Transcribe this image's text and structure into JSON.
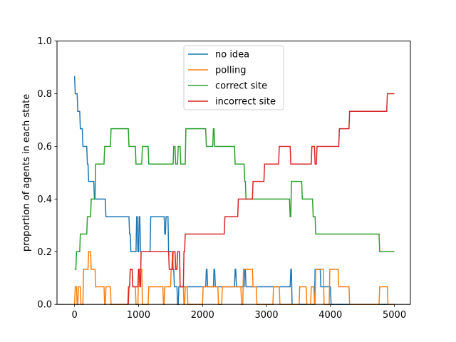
{
  "chart_data": {
    "type": "line",
    "title": "",
    "xlabel": "",
    "ylabel": "proportion of agents in each state",
    "xlim": [
      -275,
      5250
    ],
    "ylim": [
      0.0,
      1.0
    ],
    "x_ticks": [
      0,
      1000,
      2000,
      3000,
      4000,
      5000
    ],
    "y_ticks": [
      0.0,
      0.2,
      0.4,
      0.6,
      0.8,
      1.0
    ],
    "x_tick_labels": [
      "0",
      "1000",
      "2000",
      "3000",
      "4000",
      "5000"
    ],
    "y_tick_labels": [
      "0.0",
      "0.2",
      "0.4",
      "0.6",
      "0.8",
      "1.0"
    ],
    "legend_position": "upper-center",
    "grid": false,
    "step": true,
    "series": [
      {
        "name": "no idea",
        "color": "#1f77b4",
        "points": [
          [
            0,
            0.867
          ],
          [
            10,
            0.8
          ],
          [
            40,
            0.8
          ],
          [
            50,
            0.733
          ],
          [
            80,
            0.733
          ],
          [
            90,
            0.667
          ],
          [
            120,
            0.667
          ],
          [
            130,
            0.6
          ],
          [
            190,
            0.6
          ],
          [
            200,
            0.533
          ],
          [
            210,
            0.533
          ],
          [
            220,
            0.467
          ],
          [
            300,
            0.467
          ],
          [
            310,
            0.4
          ],
          [
            480,
            0.4
          ],
          [
            490,
            0.333
          ],
          [
            850,
            0.333
          ],
          [
            860,
            0.267
          ],
          [
            870,
            0.267
          ],
          [
            880,
            0.2
          ],
          [
            960,
            0.2
          ],
          [
            970,
            0.333
          ],
          [
            980,
            0.333
          ],
          [
            990,
            0.2
          ],
          [
            1000,
            0.2
          ],
          [
            1010,
            0.333
          ],
          [
            1020,
            0.333
          ],
          [
            1030,
            0.2
          ],
          [
            1180,
            0.2
          ],
          [
            1190,
            0.333
          ],
          [
            1400,
            0.333
          ],
          [
            1410,
            0.267
          ],
          [
            1420,
            0.267
          ],
          [
            1430,
            0.333
          ],
          [
            1460,
            0.333
          ],
          [
            1470,
            0.2
          ],
          [
            1530,
            0.2
          ],
          [
            1540,
            0.133
          ],
          [
            1550,
            0.133
          ],
          [
            1560,
            0.067
          ],
          [
            1600,
            0.067
          ],
          [
            1610,
            0.0
          ],
          [
            1620,
            0.0
          ],
          [
            1630,
            0.067
          ],
          [
            2050,
            0.067
          ],
          [
            2060,
            0.133
          ],
          [
            2070,
            0.133
          ],
          [
            2080,
            0.067
          ],
          [
            2170,
            0.067
          ],
          [
            2180,
            0.133
          ],
          [
            2190,
            0.133
          ],
          [
            2200,
            0.067
          ],
          [
            2500,
            0.067
          ],
          [
            2510,
            0.133
          ],
          [
            2520,
            0.133
          ],
          [
            2530,
            0.067
          ],
          [
            2650,
            0.067
          ],
          [
            2660,
            0.133
          ],
          [
            2670,
            0.133
          ],
          [
            2680,
            0.067
          ],
          [
            3370,
            0.067
          ],
          [
            3380,
            0.133
          ],
          [
            3390,
            0.133
          ],
          [
            3400,
            0.0
          ],
          [
            3750,
            0.0
          ],
          [
            3760,
            0.133
          ],
          [
            3840,
            0.133
          ],
          [
            3850,
            0.067
          ],
          [
            4000,
            0.067
          ],
          [
            4010,
            0.0
          ],
          [
            5000,
            0.0
          ]
        ]
      },
      {
        "name": "polling",
        "color": "#ff7f0e",
        "points": [
          [
            0,
            0.0
          ],
          [
            10,
            0.067
          ],
          [
            30,
            0.067
          ],
          [
            40,
            0.0
          ],
          [
            50,
            0.0
          ],
          [
            60,
            0.067
          ],
          [
            90,
            0.067
          ],
          [
            100,
            0.0
          ],
          [
            130,
            0.0
          ],
          [
            140,
            0.133
          ],
          [
            210,
            0.133
          ],
          [
            220,
            0.2
          ],
          [
            250,
            0.2
          ],
          [
            260,
            0.133
          ],
          [
            320,
            0.133
          ],
          [
            330,
            0.067
          ],
          [
            460,
            0.067
          ],
          [
            470,
            0.0
          ],
          [
            480,
            0.0
          ],
          [
            490,
            0.067
          ],
          [
            560,
            0.067
          ],
          [
            570,
            0.0
          ],
          [
            830,
            0.0
          ],
          [
            840,
            0.067
          ],
          [
            860,
            0.067
          ],
          [
            870,
            0.133
          ],
          [
            900,
            0.133
          ],
          [
            910,
            0.067
          ],
          [
            950,
            0.067
          ],
          [
            960,
            0.0
          ],
          [
            990,
            0.0
          ],
          [
            1000,
            0.133
          ],
          [
            1050,
            0.133
          ],
          [
            1060,
            0.0
          ],
          [
            1150,
            0.0
          ],
          [
            1160,
            0.067
          ],
          [
            1380,
            0.067
          ],
          [
            1390,
            0.0
          ],
          [
            1400,
            0.0
          ],
          [
            1410,
            0.067
          ],
          [
            1500,
            0.067
          ],
          [
            1510,
            0.133
          ],
          [
            1520,
            0.133
          ],
          [
            1530,
            0.2
          ],
          [
            1570,
            0.2
          ],
          [
            1580,
            0.133
          ],
          [
            1600,
            0.133
          ],
          [
            1610,
            0.2
          ],
          [
            1640,
            0.2
          ],
          [
            1650,
            0.067
          ],
          [
            1700,
            0.067
          ],
          [
            1710,
            0.0
          ],
          [
            1720,
            0.0
          ],
          [
            1730,
            0.067
          ],
          [
            1760,
            0.067
          ],
          [
            1770,
            0.0
          ],
          [
            2000,
            0.0
          ],
          [
            2010,
            0.067
          ],
          [
            2240,
            0.067
          ],
          [
            2250,
            0.0
          ],
          [
            2300,
            0.0
          ],
          [
            2310,
            0.067
          ],
          [
            2600,
            0.067
          ],
          [
            2610,
            0.0
          ],
          [
            2630,
            0.0
          ],
          [
            2640,
            0.133
          ],
          [
            2780,
            0.133
          ],
          [
            2790,
            0.067
          ],
          [
            2840,
            0.067
          ],
          [
            2850,
            0.0
          ],
          [
            3100,
            0.0
          ],
          [
            3110,
            0.067
          ],
          [
            3200,
            0.067
          ],
          [
            3210,
            0.0
          ],
          [
            3510,
            0.0
          ],
          [
            3520,
            0.067
          ],
          [
            3620,
            0.067
          ],
          [
            3630,
            0.0
          ],
          [
            3690,
            0.0
          ],
          [
            3700,
            0.067
          ],
          [
            3740,
            0.067
          ],
          [
            3750,
            0.0
          ],
          [
            3760,
            0.0
          ],
          [
            3770,
            0.133
          ],
          [
            3890,
            0.133
          ],
          [
            3900,
            0.0
          ],
          [
            3980,
            0.0
          ],
          [
            3990,
            0.133
          ],
          [
            4120,
            0.133
          ],
          [
            4130,
            0.067
          ],
          [
            4290,
            0.067
          ],
          [
            4300,
            0.0
          ],
          [
            4760,
            0.0
          ],
          [
            4770,
            0.067
          ],
          [
            4890,
            0.067
          ],
          [
            4900,
            0.0
          ],
          [
            5000,
            0.0
          ]
        ]
      },
      {
        "name": "correct site",
        "color": "#2ca02c",
        "points": [
          [
            0,
            0.133
          ],
          [
            20,
            0.133
          ],
          [
            30,
            0.2
          ],
          [
            80,
            0.2
          ],
          [
            90,
            0.267
          ],
          [
            190,
            0.267
          ],
          [
            200,
            0.333
          ],
          [
            250,
            0.333
          ],
          [
            260,
            0.4
          ],
          [
            320,
            0.4
          ],
          [
            330,
            0.533
          ],
          [
            460,
            0.533
          ],
          [
            470,
            0.6
          ],
          [
            560,
            0.6
          ],
          [
            570,
            0.667
          ],
          [
            840,
            0.667
          ],
          [
            850,
            0.6
          ],
          [
            950,
            0.6
          ],
          [
            960,
            0.533
          ],
          [
            1050,
            0.533
          ],
          [
            1060,
            0.6
          ],
          [
            1150,
            0.6
          ],
          [
            1160,
            0.533
          ],
          [
            1540,
            0.533
          ],
          [
            1550,
            0.6
          ],
          [
            1570,
            0.6
          ],
          [
            1580,
            0.533
          ],
          [
            1610,
            0.533
          ],
          [
            1620,
            0.6
          ],
          [
            1650,
            0.6
          ],
          [
            1660,
            0.533
          ],
          [
            1730,
            0.533
          ],
          [
            1740,
            0.667
          ],
          [
            2050,
            0.667
          ],
          [
            2060,
            0.6
          ],
          [
            2160,
            0.6
          ],
          [
            2170,
            0.667
          ],
          [
            2180,
            0.667
          ],
          [
            2190,
            0.6
          ],
          [
            2500,
            0.6
          ],
          [
            2510,
            0.533
          ],
          [
            2650,
            0.533
          ],
          [
            2660,
            0.467
          ],
          [
            2670,
            0.467
          ],
          [
            2680,
            0.4
          ],
          [
            3360,
            0.4
          ],
          [
            3370,
            0.333
          ],
          [
            3380,
            0.333
          ],
          [
            3390,
            0.467
          ],
          [
            3550,
            0.467
          ],
          [
            3560,
            0.4
          ],
          [
            3720,
            0.4
          ],
          [
            3730,
            0.333
          ],
          [
            3760,
            0.333
          ],
          [
            3770,
            0.267
          ],
          [
            4760,
            0.267
          ],
          [
            4770,
            0.2
          ],
          [
            5000,
            0.2
          ]
        ]
      },
      {
        "name": "incorrect site",
        "color": "#d62728",
        "points": [
          [
            840,
            0.0
          ],
          [
            850,
            0.067
          ],
          [
            860,
            0.067
          ],
          [
            870,
            0.133
          ],
          [
            900,
            0.133
          ],
          [
            910,
            0.067
          ],
          [
            990,
            0.067
          ],
          [
            1000,
            0.133
          ],
          [
            1010,
            0.133
          ],
          [
            1020,
            0.067
          ],
          [
            1030,
            0.067
          ],
          [
            1040,
            0.2
          ],
          [
            1470,
            0.2
          ],
          [
            1480,
            0.133
          ],
          [
            1530,
            0.133
          ],
          [
            1540,
            0.2
          ],
          [
            1570,
            0.2
          ],
          [
            1580,
            0.133
          ],
          [
            1600,
            0.133
          ],
          [
            1610,
            0.2
          ],
          [
            1640,
            0.2
          ],
          [
            1650,
            0.067
          ],
          [
            1700,
            0.067
          ],
          [
            1710,
            0.2
          ],
          [
            1720,
            0.2
          ],
          [
            1730,
            0.267
          ],
          [
            2340,
            0.267
          ],
          [
            2350,
            0.333
          ],
          [
            2550,
            0.333
          ],
          [
            2560,
            0.4
          ],
          [
            2780,
            0.4
          ],
          [
            2790,
            0.467
          ],
          [
            2960,
            0.467
          ],
          [
            2970,
            0.533
          ],
          [
            3190,
            0.533
          ],
          [
            3200,
            0.6
          ],
          [
            3370,
            0.6
          ],
          [
            3380,
            0.533
          ],
          [
            3700,
            0.533
          ],
          [
            3710,
            0.6
          ],
          [
            3750,
            0.6
          ],
          [
            3760,
            0.533
          ],
          [
            3780,
            0.533
          ],
          [
            3790,
            0.6
          ],
          [
            4130,
            0.6
          ],
          [
            4140,
            0.667
          ],
          [
            4290,
            0.667
          ],
          [
            4300,
            0.733
          ],
          [
            4880,
            0.733
          ],
          [
            4890,
            0.8
          ],
          [
            5000,
            0.8
          ]
        ]
      }
    ]
  }
}
